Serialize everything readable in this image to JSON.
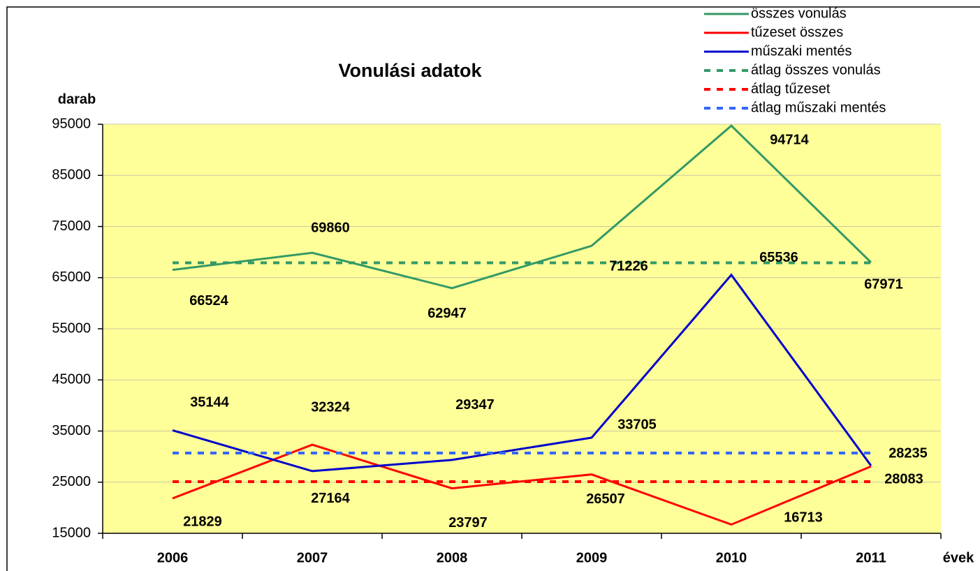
{
  "chart_data": {
    "type": "line",
    "title": "Vonulási adatok",
    "y_label": "darab",
    "x_label": "évek",
    "categories": [
      "2006",
      "2007",
      "2008",
      "2009",
      "2010",
      "2011"
    ],
    "series": [
      {
        "name": "összes vonulás",
        "color": "#339966",
        "linestyle": "solid",
        "values": [
          66524,
          69860,
          62947,
          71226,
          94714,
          67971
        ]
      },
      {
        "name": "tűzeset összes",
        "color": "#ff0000",
        "linestyle": "solid",
        "values": [
          21829,
          32324,
          23797,
          26507,
          16713,
          28083
        ]
      },
      {
        "name": "műszaki mentés",
        "color": "#0000cc",
        "linestyle": "solid",
        "values": [
          35144,
          27164,
          29347,
          33705,
          65536,
          28235
        ]
      },
      {
        "name": "átlag összes vonulás",
        "color": "#339966",
        "linestyle": "dashed",
        "values": [
          67900,
          67900,
          67900,
          67900,
          67900,
          67900
        ]
      },
      {
        "name": "átlag tűzeset",
        "color": "#ff0000",
        "linestyle": "dashed",
        "values": [
          25100,
          25100,
          25100,
          25100,
          25100,
          25100
        ]
      },
      {
        "name": "átlag műszaki mentés",
        "color": "#3366ff",
        "linestyle": "dashed",
        "values": [
          30700,
          30700,
          30700,
          30700,
          30700,
          30700
        ]
      }
    ],
    "data_labels": [
      true,
      true,
      true,
      false,
      false,
      false
    ],
    "ylim": [
      15000,
      95000
    ],
    "yticks": [
      15000,
      25000,
      35000,
      45000,
      55000,
      65000,
      75000,
      85000,
      95000
    ],
    "grid": true,
    "legend": "top-right",
    "background": "#ffff99"
  }
}
